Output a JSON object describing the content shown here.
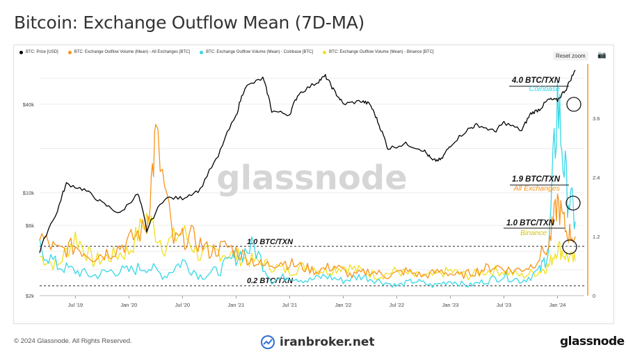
{
  "page": {
    "title": "Bitcoin: Exchange Outflow Mean (7D-MA)",
    "reset_zoom": "Reset zoom",
    "copyright": "© 2024 Glassnode. All Rights Reserved.",
    "watermark": "glassnode",
    "partner_brand": "iranbroker.net",
    "logo_text": "glassnode"
  },
  "colors": {
    "price": "#000000",
    "all_exchanges": "#f7931a",
    "coinbase": "#36d7e6",
    "binance": "#f0e11e",
    "right_axis": "#f7931a"
  },
  "chart_data": {
    "type": "line",
    "title": "Bitcoin: Exchange Outflow Mean (7D-MA)",
    "x_ticks": [
      "Jul '19",
      "Jan '20",
      "Jul '20",
      "Jan '21",
      "Jul '21",
      "Jan '22",
      "Jul '22",
      "Jan '23",
      "Jul '23",
      "Jan '24"
    ],
    "x_range": [
      "2019-03",
      "2024-04"
    ],
    "left_axis": {
      "scale": "log",
      "ticks": [
        "$2k",
        "$6k",
        "$10k",
        "$40k"
      ],
      "tick_values": [
        2000,
        6000,
        10000,
        40000
      ]
    },
    "right_axis": {
      "scale": "linear",
      "ticks": [
        "0",
        "1.2",
        "2.4",
        "3.6"
      ],
      "tick_values": [
        0,
        1.2,
        2.4,
        3.6
      ],
      "ylim": [
        0,
        4.7
      ]
    },
    "reference_lines": [
      {
        "value": 1.0,
        "label": "1.0 BTC/TXN"
      },
      {
        "value": 0.2,
        "label": "0.2 BTC/TXN"
      }
    ],
    "annotations": [
      {
        "value": "4.0 BTC/TXN",
        "label": "Coinbase",
        "series": "coinbase"
      },
      {
        "value": "1.9 BTC/TXN",
        "label": "All Exchanges",
        "series": "all_exchanges"
      },
      {
        "value": "1.0 BTC/TXN",
        "label": "Binance",
        "series": "binance"
      }
    ],
    "series": [
      {
        "name": "BTC: Price [USD]",
        "axis": "left",
        "color": "#000000",
        "x": [
          "2019-03",
          "2019-05",
          "2019-06",
          "2019-08",
          "2019-10",
          "2019-12",
          "2020-02",
          "2020-03",
          "2020-05",
          "2020-07",
          "2020-09",
          "2020-11",
          "2021-01",
          "2021-02",
          "2021-04",
          "2021-05",
          "2021-07",
          "2021-08",
          "2021-10",
          "2021-11",
          "2021-12",
          "2022-01",
          "2022-03",
          "2022-04",
          "2022-05",
          "2022-06",
          "2022-08",
          "2022-10",
          "2022-11",
          "2022-12",
          "2023-01",
          "2023-03",
          "2023-04",
          "2023-06",
          "2023-07",
          "2023-09",
          "2023-10",
          "2023-11",
          "2023-12",
          "2024-01",
          "2024-02",
          "2024-03"
        ],
        "values": [
          3900,
          7500,
          11500,
          10500,
          8500,
          7200,
          9800,
          5500,
          9200,
          9200,
          10500,
          17500,
          33000,
          52000,
          60000,
          36000,
          34000,
          47000,
          56000,
          62000,
          49000,
          40000,
          42000,
          40000,
          29000,
          20000,
          21500,
          19500,
          16500,
          16800,
          21000,
          27000,
          29000,
          26000,
          30000,
          26500,
          34500,
          37000,
          43000,
          42500,
          51000,
          68000
        ]
      },
      {
        "name": "BTC: Exchange Outflow Volume (Mean) - All Exchanges [BTC]",
        "axis": "right",
        "color": "#f7931a",
        "x": [
          "2019-03",
          "2019-05",
          "2019-07",
          "2019-09",
          "2019-11",
          "2020-01",
          "2020-03",
          "2020-04",
          "2020-06",
          "2020-08",
          "2020-10",
          "2020-12",
          "2021-02",
          "2021-04",
          "2021-06",
          "2021-08",
          "2021-10",
          "2021-12",
          "2022-02",
          "2022-04",
          "2022-06",
          "2022-08",
          "2022-10",
          "2022-12",
          "2023-02",
          "2023-04",
          "2023-06",
          "2023-08",
          "2023-10",
          "2023-12",
          "2024-01",
          "2024-02",
          "2024-03"
        ],
        "values": [
          1.2,
          0.9,
          1.0,
          0.8,
          0.9,
          1.1,
          1.4,
          3.2,
          1.1,
          1.2,
          0.9,
          1.0,
          0.8,
          0.6,
          0.7,
          0.6,
          0.5,
          0.6,
          0.4,
          0.5,
          0.4,
          0.5,
          0.4,
          0.5,
          0.4,
          0.5,
          0.6,
          0.5,
          0.6,
          1.0,
          1.9,
          1.3,
          1.2
        ]
      },
      {
        "name": "BTC: Exchange Outflow Volume (Mean) - Coinbase [BTC]",
        "axis": "right",
        "color": "#36d7e6",
        "x": [
          "2019-03",
          "2019-05",
          "2019-07",
          "2019-09",
          "2019-11",
          "2020-01",
          "2020-03",
          "2020-05",
          "2020-07",
          "2020-09",
          "2020-11",
          "2021-01",
          "2021-03",
          "2021-05",
          "2021-07",
          "2021-09",
          "2021-11",
          "2022-01",
          "2022-03",
          "2022-05",
          "2022-07",
          "2022-09",
          "2022-11",
          "2023-01",
          "2023-03",
          "2023-05",
          "2023-07",
          "2023-09",
          "2023-11",
          "2023-12",
          "2024-01",
          "2024-02",
          "2024-03"
        ],
        "values": [
          1.0,
          0.6,
          0.5,
          0.4,
          0.5,
          0.5,
          0.6,
          0.4,
          0.7,
          0.4,
          0.5,
          0.8,
          1.0,
          0.3,
          0.4,
          0.3,
          0.4,
          0.3,
          0.4,
          0.3,
          0.2,
          0.3,
          0.2,
          0.3,
          0.2,
          0.3,
          0.4,
          0.3,
          0.5,
          0.9,
          4.0,
          2.2,
          1.5
        ]
      },
      {
        "name": "BTC: Exchange Outflow Volume (Mean) - Binance [BTC]",
        "axis": "right",
        "color": "#f0e11e",
        "x": [
          "2019-03",
          "2019-05",
          "2019-07",
          "2019-09",
          "2019-11",
          "2020-01",
          "2020-03",
          "2020-05",
          "2020-07",
          "2020-09",
          "2020-11",
          "2021-01",
          "2021-03",
          "2021-05",
          "2021-07",
          "2021-09",
          "2021-11",
          "2022-01",
          "2022-03",
          "2022-05",
          "2022-07",
          "2022-09",
          "2022-11",
          "2023-01",
          "2023-03",
          "2023-05",
          "2023-07",
          "2023-09",
          "2023-11",
          "2023-12",
          "2024-01",
          "2024-02",
          "2024-03"
        ],
        "values": [
          0.8,
          0.6,
          1.2,
          0.7,
          0.8,
          0.9,
          1.6,
          1.0,
          1.3,
          0.8,
          0.9,
          0.8,
          0.7,
          0.6,
          0.5,
          0.6,
          0.5,
          0.6,
          0.5,
          0.4,
          0.5,
          0.4,
          0.4,
          0.5,
          0.4,
          0.5,
          0.5,
          0.4,
          0.5,
          0.6,
          1.0,
          0.8,
          0.7
        ]
      }
    ]
  }
}
